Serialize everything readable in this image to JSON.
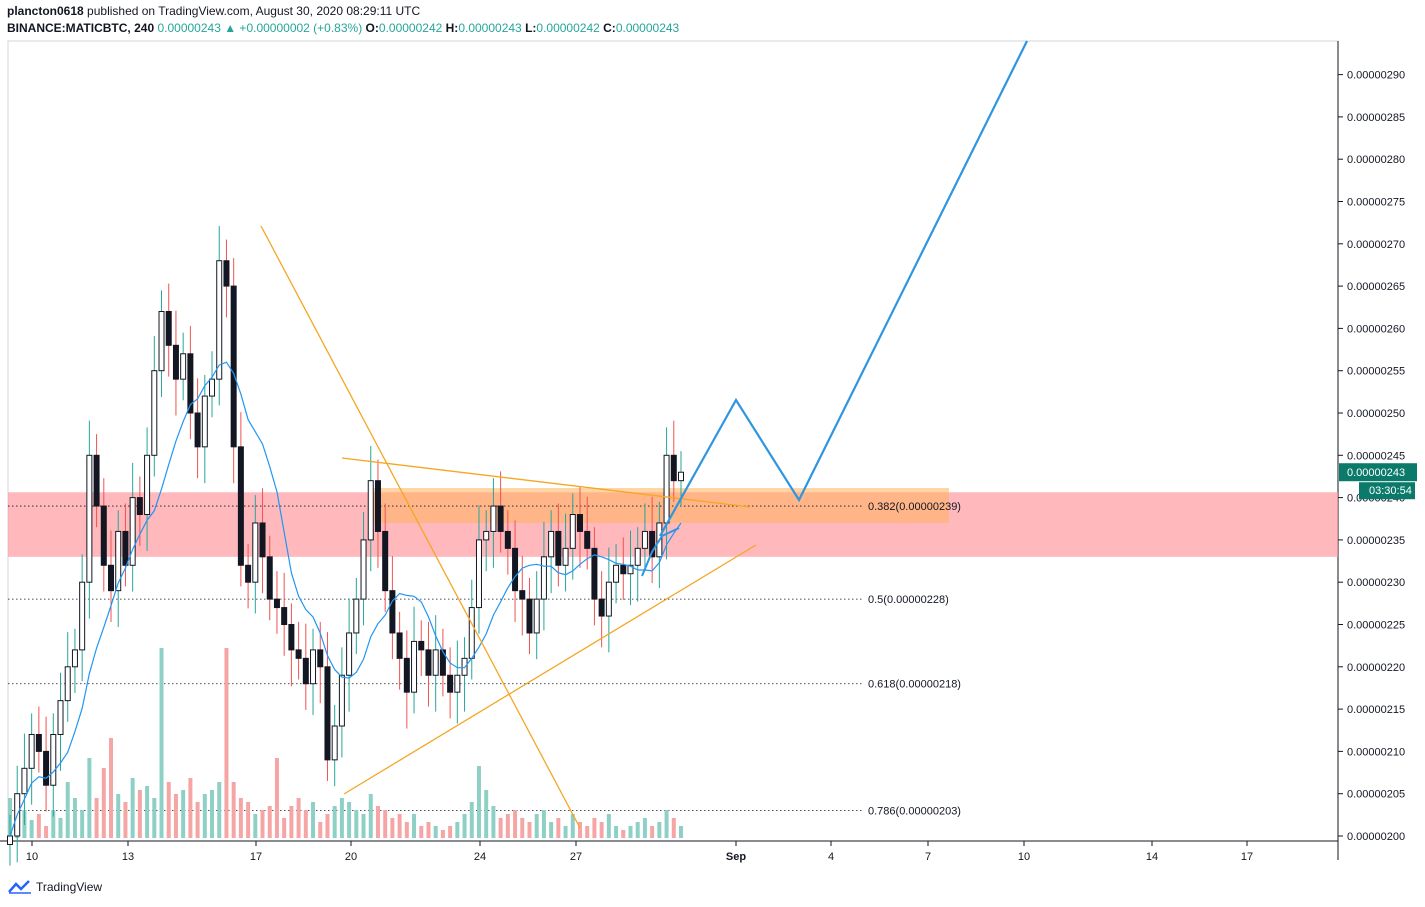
{
  "header": {
    "author_line_user": "plancton0618",
    "author_line_rest": "published on TradingView.com, August 30, 2020 08:29:11 UTC",
    "symbol": "BINANCE:MATICBTC, 240",
    "last": "0.00000243",
    "change": "▲ +0.00000002 (+0.83%)",
    "o_label": "O:",
    "o_val": "0.00000242",
    "h_label": "H:",
    "h_val": "0.00000243",
    "l_label": "L:",
    "l_val": "0.00000242",
    "c_label": "C:",
    "c_val": "0.00000243"
  },
  "footer": {
    "brand": "TradingView"
  },
  "colors": {
    "up": "#26a69a",
    "down": "#ef5350",
    "candle": "#131722",
    "ma": "#2196f3",
    "projection": "#2e95e0",
    "triangle": "#f5a623",
    "zone": "#ff9aa0",
    "box": "#ffb35c",
    "price_label": "#0b7a6b"
  },
  "chart_data": {
    "type": "candlestick",
    "symbol": "BINANCE:MATICBTC",
    "timeframe": "240",
    "ylim": [
      2e-06,
      2.925e-06
    ],
    "y_ticks": [
      "0.00000290",
      "0.00000285",
      "0.00000280",
      "0.00000275",
      "0.00000270",
      "0.00000265",
      "0.00000260",
      "0.00000255",
      "0.00000250",
      "0.00000245",
      "0.00000240",
      "0.00000235",
      "0.00000230",
      "0.00000225",
      "0.00000220",
      "0.00000215",
      "0.00000210",
      "0.00000205",
      "0.00000200"
    ],
    "x_ticks": [
      "10",
      "13",
      "17",
      "20",
      "24",
      "27",
      "Sep",
      "4",
      "7",
      "10",
      "14",
      "17"
    ],
    "last_price": "0.00000243",
    "countdown": "03:30:54",
    "fib_levels": [
      {
        "label": "0.382(0.00000239)",
        "value": 2.39e-06
      },
      {
        "label": "0.5(0.00000228)",
        "value": 2.28e-06
      },
      {
        "label": "0.618(0.00000218)",
        "value": 2.18e-06
      },
      {
        "label": "0.786(0.00000203)",
        "value": 2.03e-06
      }
    ],
    "price_path": [
      2e-06,
      2.05e-06,
      2.08e-06,
      2.12e-06,
      2.1e-06,
      2.06e-06,
      2.12e-06,
      2.16e-06,
      2.2e-06,
      2.22e-06,
      2.3e-06,
      2.45e-06,
      2.39e-06,
      2.32e-06,
      2.29e-06,
      2.36e-06,
      2.32e-06,
      2.4e-06,
      2.38e-06,
      2.45e-06,
      2.55e-06,
      2.62e-06,
      2.58e-06,
      2.54e-06,
      2.57e-06,
      2.5e-06,
      2.46e-06,
      2.52e-06,
      2.54e-06,
      2.68e-06,
      2.65e-06,
      2.46e-06,
      2.32e-06,
      2.3e-06,
      2.37e-06,
      2.33e-06,
      2.28e-06,
      2.27e-06,
      2.25e-06,
      2.22e-06,
      2.21e-06,
      2.18e-06,
      2.22e-06,
      2.2e-06,
      2.09e-06,
      2.13e-06,
      2.19e-06,
      2.24e-06,
      2.28e-06,
      2.35e-06,
      2.42e-06,
      2.36e-06,
      2.29e-06,
      2.24e-06,
      2.21e-06,
      2.17e-06,
      2.23e-06,
      2.22e-06,
      2.19e-06,
      2.22e-06,
      2.19e-06,
      2.17e-06,
      2.19e-06,
      2.21e-06,
      2.27e-06,
      2.35e-06,
      2.36e-06,
      2.39e-06,
      2.36e-06,
      2.34e-06,
      2.29e-06,
      2.28e-06,
      2.24e-06,
      2.28e-06,
      2.33e-06,
      2.36e-06,
      2.32e-06,
      2.34e-06,
      2.38e-06,
      2.36e-06,
      2.34e-06,
      2.28e-06,
      2.26e-06,
      2.3e-06,
      2.32e-06,
      2.31e-06,
      2.32e-06,
      2.34e-06,
      2.36e-06,
      2.33e-06,
      2.37e-06,
      2.45e-06,
      2.42e-06,
      2.43e-06
    ],
    "volume": [
      0.2,
      0.1,
      0.14,
      0.09,
      0.12,
      0.06,
      0.14,
      0.1,
      0.28,
      0.2,
      0.14,
      0.4,
      0.2,
      0.35,
      0.5,
      0.22,
      0.18,
      0.3,
      0.24,
      0.26,
      0.2,
      0.95,
      0.28,
      0.22,
      0.24,
      0.3,
      0.18,
      0.22,
      0.24,
      0.28,
      0.95,
      0.28,
      0.2,
      0.18,
      0.12,
      0.14,
      0.16,
      0.4,
      0.1,
      0.16,
      0.2,
      0.14,
      0.18,
      0.08,
      0.12,
      0.16,
      0.2,
      0.18,
      0.14,
      0.12,
      0.22,
      0.16,
      0.14,
      0.1,
      0.12,
      0.08,
      0.12,
      0.06,
      0.08,
      0.06,
      0.04,
      0.06,
      0.08,
      0.12,
      0.18,
      0.36,
      0.24,
      0.16,
      0.1,
      0.12,
      0.14,
      0.1,
      0.08,
      0.12,
      0.14,
      0.08,
      0.1,
      0.06,
      0.12,
      0.08,
      0.06,
      0.1,
      0.08,
      0.12,
      0.06,
      0.04,
      0.06,
      0.08,
      0.1,
      0.06,
      0.08,
      0.14,
      0.1,
      0.06
    ]
  }
}
